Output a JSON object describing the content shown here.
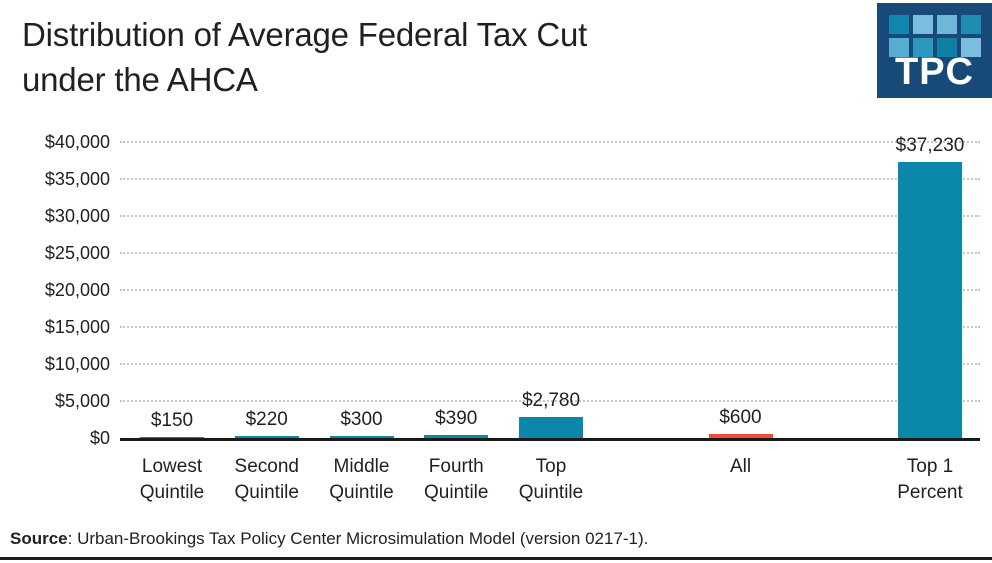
{
  "header": {
    "title": "Distribution of Average Federal Tax Cut\nunder the AHCA",
    "logo_text": "TPC"
  },
  "chart_data": {
    "type": "bar",
    "title": "Distribution of Average Federal Tax Cut under the AHCA",
    "categories": [
      "Lowest\nQuintile",
      "Second\nQuintile",
      "Middle\nQuintile",
      "Fourth\nQuintile",
      "Top\nQuintile",
      "All",
      "Top 1\nPercent"
    ],
    "values": [
      150,
      220,
      300,
      390,
      2780,
      600,
      37230
    ],
    "value_labels": [
      "$150",
      "$220",
      "$300",
      "$390",
      "$2,780",
      "$600",
      "$37,230"
    ],
    "bar_colors": [
      "#0b88a9",
      "#0b88a9",
      "#0b88a9",
      "#0b88a9",
      "#0b88a9",
      "#ee4f38",
      "#0b88a9"
    ],
    "xlabel": "",
    "ylabel": "",
    "ylim": [
      0,
      40000
    ],
    "ytick_step": 5000,
    "ytick_labels": [
      "$40,000",
      "$35,000",
      "$30,000",
      "$25,000",
      "$20,000",
      "$15,000",
      "$10,000",
      "$5,000",
      "$0"
    ],
    "grid": "horizontal-dotted",
    "legend": "none"
  },
  "footer": {
    "source_label": "Source",
    "source_text": ": Urban-Brookings Tax Policy Center Microsimulation Model (version 0217-1)."
  },
  "logo": {
    "squares": [
      "#1187ae",
      "#7abddc",
      "#6fb7d7",
      "#1d8db3",
      "#57add2",
      "#2d97bd",
      "#0f7fa6",
      "#7abddc"
    ]
  },
  "colors": {
    "teal_bar": "#0b88a9",
    "red_bar": "#ee4f38",
    "navy_logo": "#174a78",
    "text": "#231f20",
    "gridline": "#c6c6c6",
    "axis": "#1a1a1a"
  }
}
